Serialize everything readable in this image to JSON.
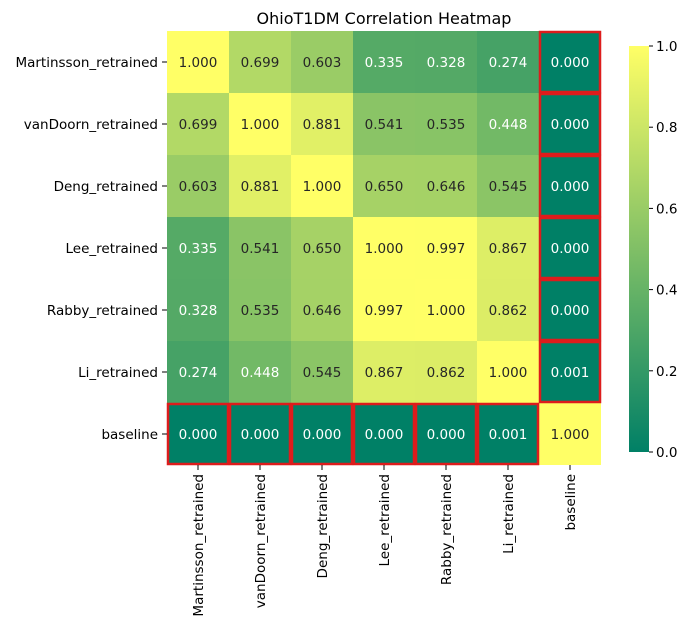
{
  "chart_data": {
    "type": "heatmap",
    "title": "OhioT1DM Correlation Heatmap",
    "xlabel": "",
    "ylabel": "",
    "x_categories": [
      "Martinsson_retrained",
      "vanDoorn_retrained",
      "Deng_retrained",
      "Lee_retrained",
      "Rabby_retrained",
      "Li_retrained",
      "baseline"
    ],
    "y_categories": [
      "Martinsson_retrained",
      "vanDoorn_retrained",
      "Deng_retrained",
      "Lee_retrained",
      "Rabby_retrained",
      "Li_retrained",
      "baseline"
    ],
    "matrix": [
      [
        1.0,
        0.699,
        0.603,
        0.335,
        0.328,
        0.274,
        0.0
      ],
      [
        0.699,
        1.0,
        0.881,
        0.541,
        0.535,
        0.448,
        0.0
      ],
      [
        0.603,
        0.881,
        1.0,
        0.65,
        0.646,
        0.545,
        0.0
      ],
      [
        0.335,
        0.541,
        0.65,
        1.0,
        0.997,
        0.867,
        0.0
      ],
      [
        0.328,
        0.535,
        0.646,
        0.997,
        1.0,
        0.862,
        0.0
      ],
      [
        0.274,
        0.448,
        0.545,
        0.867,
        0.862,
        1.0,
        0.001
      ],
      [
        0.0,
        0.0,
        0.0,
        0.0,
        0.0,
        0.001,
        1.0
      ]
    ],
    "value_format": "0.000",
    "colormap": "summer",
    "vmin": 0.0,
    "vmax": 1.0,
    "colorbar_ticks": [
      "0.0",
      "0.2",
      "0.4",
      "0.6",
      "0.8",
      "1.0"
    ],
    "highlight_color": "#dd1c1c",
    "highlighted_cells_note": "baseline row and baseline column cells outlined"
  }
}
